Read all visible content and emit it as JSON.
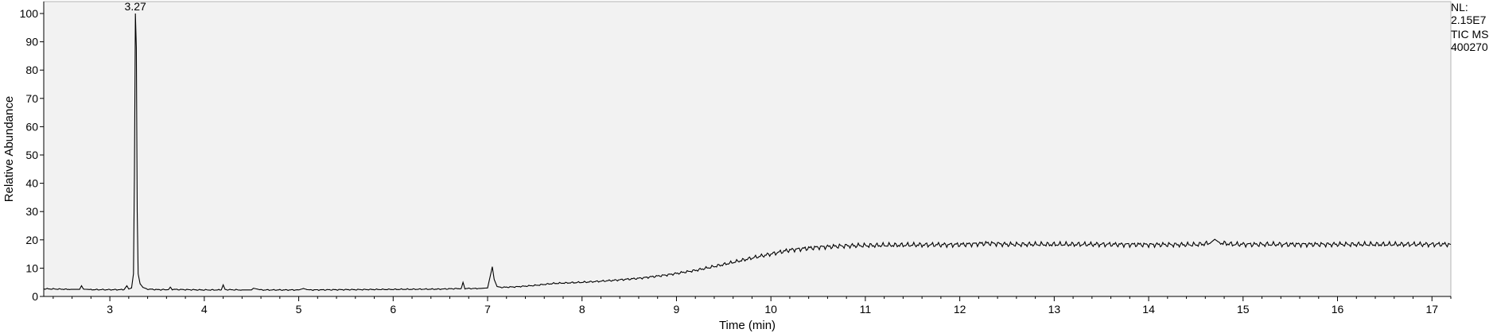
{
  "chart_data": {
    "type": "line",
    "xlabel": "Time (min)",
    "ylabel": "Relative Abundance",
    "xlim": [
      2.3,
      17.2
    ],
    "ylim": [
      0,
      100
    ],
    "x_ticks": [
      3,
      4,
      5,
      6,
      7,
      8,
      9,
      10,
      11,
      12,
      13,
      14,
      15,
      16,
      17
    ],
    "y_ticks": [
      0,
      10,
      20,
      30,
      40,
      50,
      60,
      70,
      80,
      90,
      100
    ],
    "grid": false,
    "plot_background": "#f2f2f2",
    "line_color": "#000000",
    "series": [
      {
        "x": [
          2.3,
          2.6,
          2.68,
          2.7,
          2.72,
          2.8,
          3.0,
          3.15,
          3.18,
          3.2,
          3.23,
          3.25,
          3.26,
          3.27,
          3.28,
          3.29,
          3.3,
          3.32,
          3.35,
          3.4,
          3.5,
          3.62,
          3.64,
          3.66,
          3.8,
          4.0,
          4.18,
          4.2,
          4.22,
          4.4,
          4.5,
          4.52,
          4.6,
          5.0,
          5.05,
          5.1,
          5.5,
          6.0,
          6.5,
          6.72,
          6.74,
          6.76,
          6.9,
          7.0,
          7.03,
          7.05,
          7.07,
          7.1,
          7.15,
          7.3,
          7.5,
          7.7,
          8.0,
          8.3,
          8.6,
          8.9,
          9.2,
          9.5,
          9.8,
          10.0,
          10.2,
          10.5,
          10.8,
          11.0,
          11.5,
          12.0,
          12.3,
          12.5,
          13.0,
          13.5,
          14.0,
          14.5,
          14.65,
          14.7,
          14.75,
          14.9,
          15.5,
          16.0,
          16.5,
          17.0,
          17.2
        ],
        "y": [
          2.7,
          2.5,
          2.5,
          3.8,
          2.6,
          2.4,
          2.4,
          2.4,
          3.8,
          2.6,
          3.0,
          8.0,
          43.0,
          100.0,
          88.0,
          30.0,
          8.0,
          4.5,
          3.2,
          2.6,
          2.4,
          2.4,
          3.3,
          2.5,
          2.4,
          2.3,
          2.3,
          4.1,
          2.4,
          2.3,
          2.3,
          2.9,
          2.3,
          2.3,
          2.8,
          2.3,
          2.4,
          2.5,
          2.6,
          2.8,
          5.0,
          2.8,
          2.8,
          3.0,
          7.5,
          10.5,
          6.0,
          3.5,
          3.2,
          3.4,
          3.9,
          4.6,
          5.0,
          5.6,
          6.4,
          7.6,
          9.2,
          11.3,
          13.6,
          15.0,
          16.4,
          17.4,
          17.9,
          18.0,
          18.2,
          18.3,
          18.8,
          18.4,
          18.4,
          18.4,
          18.3,
          18.3,
          18.8,
          20.2,
          19.0,
          18.4,
          18.4,
          18.4,
          18.4,
          18.4,
          18.4
        ]
      }
    ],
    "annotations": [
      {
        "x": 3.27,
        "y": 100,
        "text": "3.27"
      }
    ]
  },
  "header_right": {
    "nl_label": "NL:",
    "nl_value": "2.15E7",
    "trace_label": "TIC  MS",
    "file_id": "400270"
  }
}
